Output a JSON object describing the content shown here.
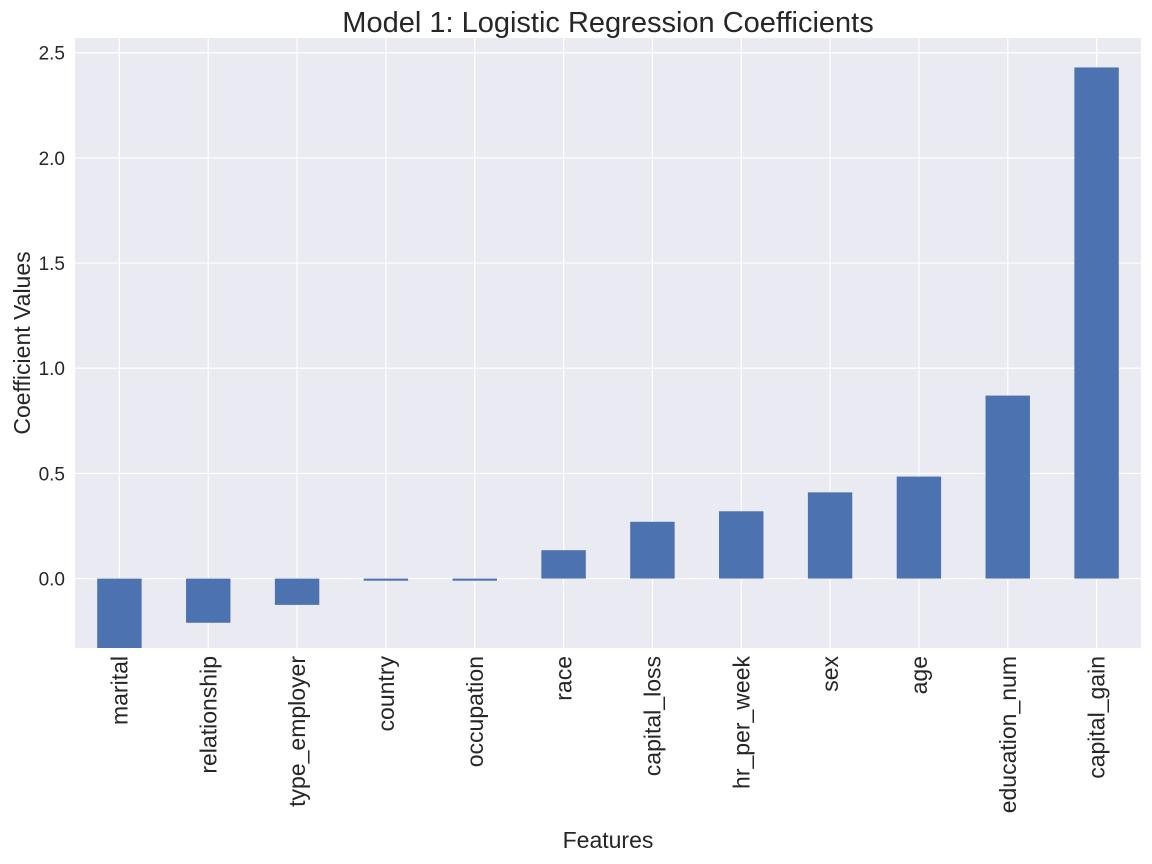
{
  "chart_data": {
    "type": "bar",
    "title": "Model 1: Logistic Regression Coefficients",
    "xlabel": "Features",
    "ylabel": "Coefficient Values",
    "categories": [
      "marital",
      "relationship",
      "type_employer",
      "country",
      "occupation",
      "race",
      "capital_loss",
      "hr_per_week",
      "sex",
      "age",
      "education_num",
      "capital_gain"
    ],
    "values": [
      -0.33,
      -0.21,
      -0.125,
      -0.01,
      -0.01,
      0.135,
      0.27,
      0.32,
      0.41,
      0.485,
      0.87,
      2.43
    ],
    "ylim": [
      -0.33,
      2.57
    ],
    "yticks": [
      0.0,
      0.5,
      1.0,
      1.5,
      2.0,
      2.5
    ],
    "ytick_labels": [
      "0.0",
      "0.5",
      "1.0",
      "1.5",
      "2.0",
      "2.5"
    ],
    "grid": true,
    "legend": "none",
    "colors": {
      "bar": "#4c72b0",
      "plot_background": "#eaeaf2",
      "grid": "#ffffff",
      "text": "#262626"
    }
  }
}
